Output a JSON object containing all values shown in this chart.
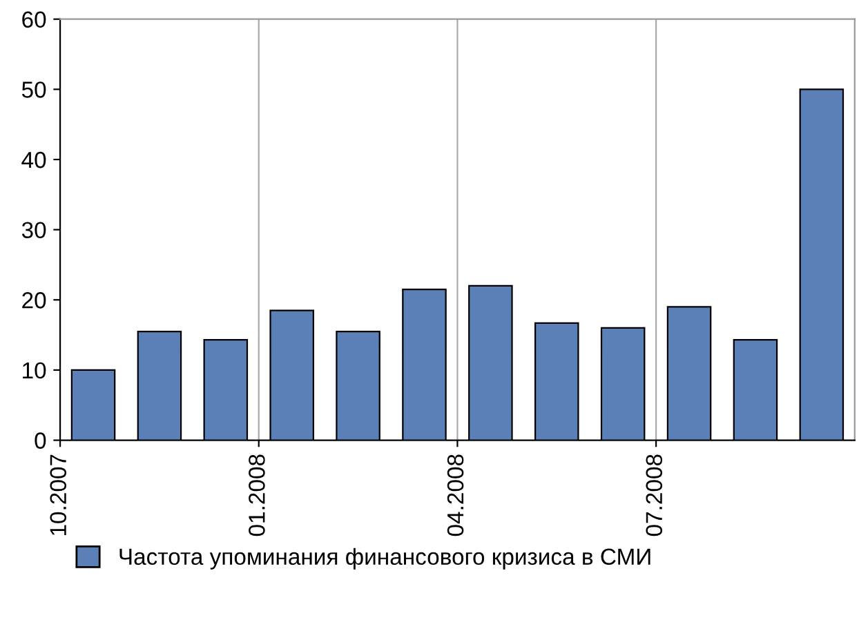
{
  "chart_data": {
    "type": "bar",
    "categories": [
      "10.2007",
      null,
      null,
      "01.2008",
      null,
      null,
      "04.2008",
      null,
      null,
      "07.2008",
      null,
      null
    ],
    "series": [
      {
        "name": "Частота упоминания финансового кризиса в СМИ",
        "color": "#5b80b8",
        "values": [
          10,
          15.5,
          14.3,
          18.5,
          15.5,
          21.5,
          22,
          16.7,
          16,
          19,
          14.3,
          50
        ]
      }
    ],
    "ylim": [
      0,
      60
    ],
    "yticks": [
      0,
      10,
      20,
      30,
      40,
      50,
      60
    ],
    "grid": "x",
    "legend": "bottom"
  }
}
